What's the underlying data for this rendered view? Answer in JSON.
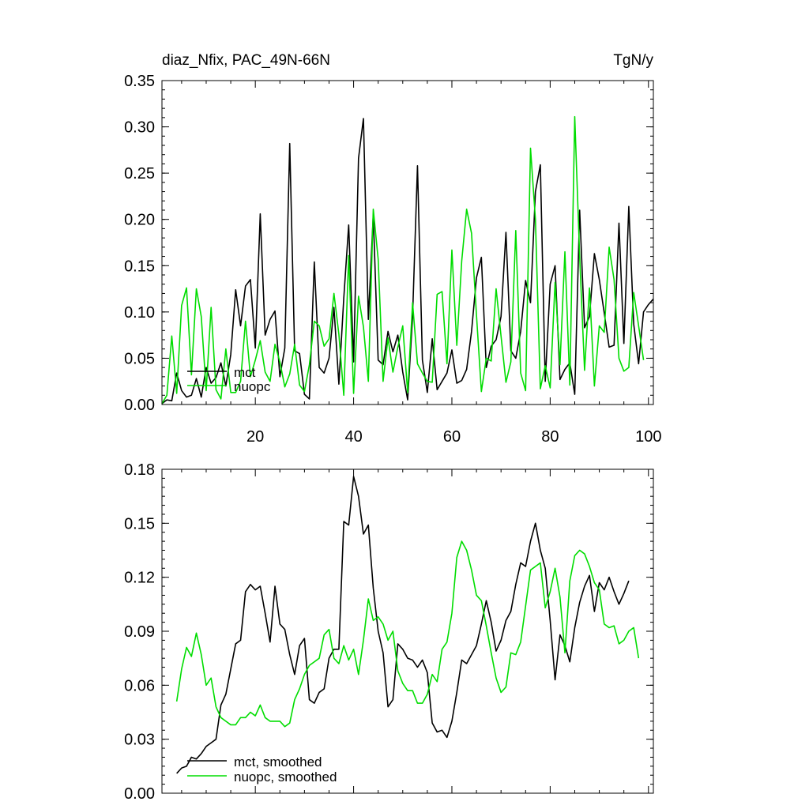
{
  "chart_data": [
    {
      "type": "line",
      "title": "diaz_Nfix, PAC_49N-66N",
      "units": "TgN/y",
      "xlim": [
        1,
        101
      ],
      "ylim": [
        0,
        0.35
      ],
      "x_ticks": [
        20,
        40,
        60,
        80,
        100
      ],
      "y_ticks": [
        0.0,
        0.05,
        0.1,
        0.15,
        0.2,
        0.25,
        0.3,
        0.35
      ],
      "x_tick_labels": [
        "20",
        "40",
        "60",
        "80",
        "100"
      ],
      "y_tick_labels": [
        "0.00",
        "0.05",
        "0.10",
        "0.15",
        "0.20",
        "0.25",
        "0.30",
        "0.35"
      ],
      "legend_position": "lower-left",
      "series": [
        {
          "name": "mct",
          "color": "#000000",
          "x_start": 1,
          "values": [
            0.001,
            0.005,
            0.004,
            0.034,
            0.015,
            0.008,
            0.01,
            0.028,
            0.008,
            0.04,
            0.023,
            0.029,
            0.045,
            0.02,
            0.054,
            0.124,
            0.085,
            0.128,
            0.135,
            0.061,
            0.206,
            0.075,
            0.092,
            0.101,
            0.03,
            0.061,
            0.282,
            0.058,
            0.055,
            0.011,
            0.006,
            0.154,
            0.04,
            0.034,
            0.05,
            0.105,
            0.022,
            0.115,
            0.194,
            0.046,
            0.266,
            0.309,
            0.092,
            0.205,
            0.048,
            0.043,
            0.079,
            0.057,
            0.075,
            0.035,
            0.005,
            0.095,
            0.258,
            0.048,
            0.013,
            0.071,
            0.016,
            0.025,
            0.034,
            0.059,
            0.023,
            0.026,
            0.038,
            0.079,
            0.137,
            0.159,
            0.04,
            0.063,
            0.07,
            0.095,
            0.186,
            0.058,
            0.05,
            0.079,
            0.134,
            0.11,
            0.23,
            0.259,
            0.025,
            0.13,
            0.15,
            0.027,
            0.038,
            0.045,
            0.011,
            0.21,
            0.083,
            0.095,
            0.163,
            0.135,
            0.099,
            0.062,
            0.064,
            0.196,
            0.066,
            0.214,
            0.087,
            0.044,
            0.1,
            0.108,
            0.114
          ]
        },
        {
          "name": "nuopc",
          "color": "#00dd00",
          "x_start": 1,
          "values": [
            0.001,
            0.01,
            0.074,
            0.012,
            0.107,
            0.126,
            0.032,
            0.125,
            0.095,
            0.015,
            0.105,
            0.016,
            0.006,
            0.06,
            0.013,
            0.013,
            0.025,
            0.09,
            0.03,
            0.048,
            0.069,
            0.035,
            0.025,
            0.065,
            0.046,
            0.019,
            0.033,
            0.065,
            0.021,
            0.014,
            0.043,
            0.09,
            0.085,
            0.063,
            0.071,
            0.12,
            0.076,
            0.01,
            0.161,
            0.012,
            0.117,
            0.084,
            0.025,
            0.211,
            0.157,
            0.025,
            0.072,
            0.035,
            0.062,
            0.085,
            0.013,
            0.11,
            0.044,
            0.034,
            0.025,
            0.024,
            0.119,
            0.122,
            0.044,
            0.167,
            0.064,
            0.155,
            0.211,
            0.185,
            0.097,
            0.014,
            0.05,
            0.047,
            0.125,
            0.074,
            0.024,
            0.046,
            0.188,
            0.034,
            0.015,
            0.277,
            0.2,
            0.017,
            0.042,
            0.018,
            0.132,
            0.043,
            0.165,
            0.021,
            0.311,
            0.16,
            0.037,
            0.126,
            0.02,
            0.085,
            0.078,
            0.17,
            0.135,
            0.05,
            0.036,
            0.04,
            0.121,
            0.085,
            0.048
          ]
        }
      ]
    },
    {
      "type": "line",
      "xlim": [
        1,
        101
      ],
      "ylim": [
        0,
        0.18
      ],
      "x_ticks": [
        20,
        40,
        60,
        80,
        100
      ],
      "y_ticks": [
        0.0,
        0.03,
        0.06,
        0.09,
        0.12,
        0.15,
        0.18
      ],
      "y_tick_labels": [
        "0.00",
        "0.03",
        "0.06",
        "0.09",
        "0.12",
        "0.15",
        "0.18"
      ],
      "legend_position": "lower-left",
      "series": [
        {
          "name": "mct, smoothed",
          "color": "#000000",
          "x_start": 4,
          "values": [
            0.011,
            0.014,
            0.015,
            0.02,
            0.019,
            0.022,
            0.026,
            0.028,
            0.03,
            0.049,
            0.055,
            0.069,
            0.083,
            0.085,
            0.112,
            0.116,
            0.113,
            0.115,
            0.1,
            0.084,
            0.115,
            0.094,
            0.091,
            0.077,
            0.066,
            0.082,
            0.086,
            0.052,
            0.05,
            0.056,
            0.058,
            0.075,
            0.08,
            0.08,
            0.151,
            0.149,
            0.176,
            0.165,
            0.144,
            0.149,
            0.114,
            0.09,
            0.078,
            0.048,
            0.052,
            0.083,
            0.08,
            0.075,
            0.074,
            0.07,
            0.074,
            0.067,
            0.039,
            0.034,
            0.035,
            0.031,
            0.04,
            0.056,
            0.074,
            0.072,
            0.077,
            0.082,
            0.094,
            0.107,
            0.095,
            0.079,
            0.085,
            0.096,
            0.101,
            0.116,
            0.128,
            0.126,
            0.14,
            0.15,
            0.135,
            0.125,
            0.096,
            0.063,
            0.088,
            0.082,
            0.073,
            0.092,
            0.106,
            0.115,
            0.121,
            0.101,
            0.117,
            0.113,
            0.12,
            0.112,
            0.105,
            0.111,
            0.118
          ]
        },
        {
          "name": "nuopc, smoothed",
          "color": "#00dd00",
          "x_start": 4,
          "values": [
            0.051,
            0.069,
            0.081,
            0.076,
            0.089,
            0.077,
            0.06,
            0.064,
            0.048,
            0.042,
            0.04,
            0.038,
            0.038,
            0.042,
            0.042,
            0.045,
            0.043,
            0.049,
            0.042,
            0.04,
            0.04,
            0.04,
            0.037,
            0.039,
            0.052,
            0.058,
            0.066,
            0.071,
            0.073,
            0.075,
            0.088,
            0.091,
            0.075,
            0.072,
            0.082,
            0.074,
            0.08,
            0.066,
            0.085,
            0.108,
            0.096,
            0.098,
            0.094,
            0.085,
            0.09,
            0.068,
            0.061,
            0.057,
            0.057,
            0.05,
            0.05,
            0.055,
            0.066,
            0.062,
            0.08,
            0.084,
            0.1,
            0.131,
            0.14,
            0.135,
            0.124,
            0.11,
            0.107,
            0.093,
            0.078,
            0.064,
            0.056,
            0.059,
            0.078,
            0.077,
            0.084,
            0.104,
            0.124,
            0.126,
            0.128,
            0.103,
            0.112,
            0.125,
            0.109,
            0.078,
            0.118,
            0.132,
            0.135,
            0.133,
            0.126,
            0.117,
            0.113,
            0.094,
            0.092,
            0.093,
            0.083,
            0.085,
            0.09,
            0.092,
            0.075
          ]
        }
      ]
    }
  ]
}
